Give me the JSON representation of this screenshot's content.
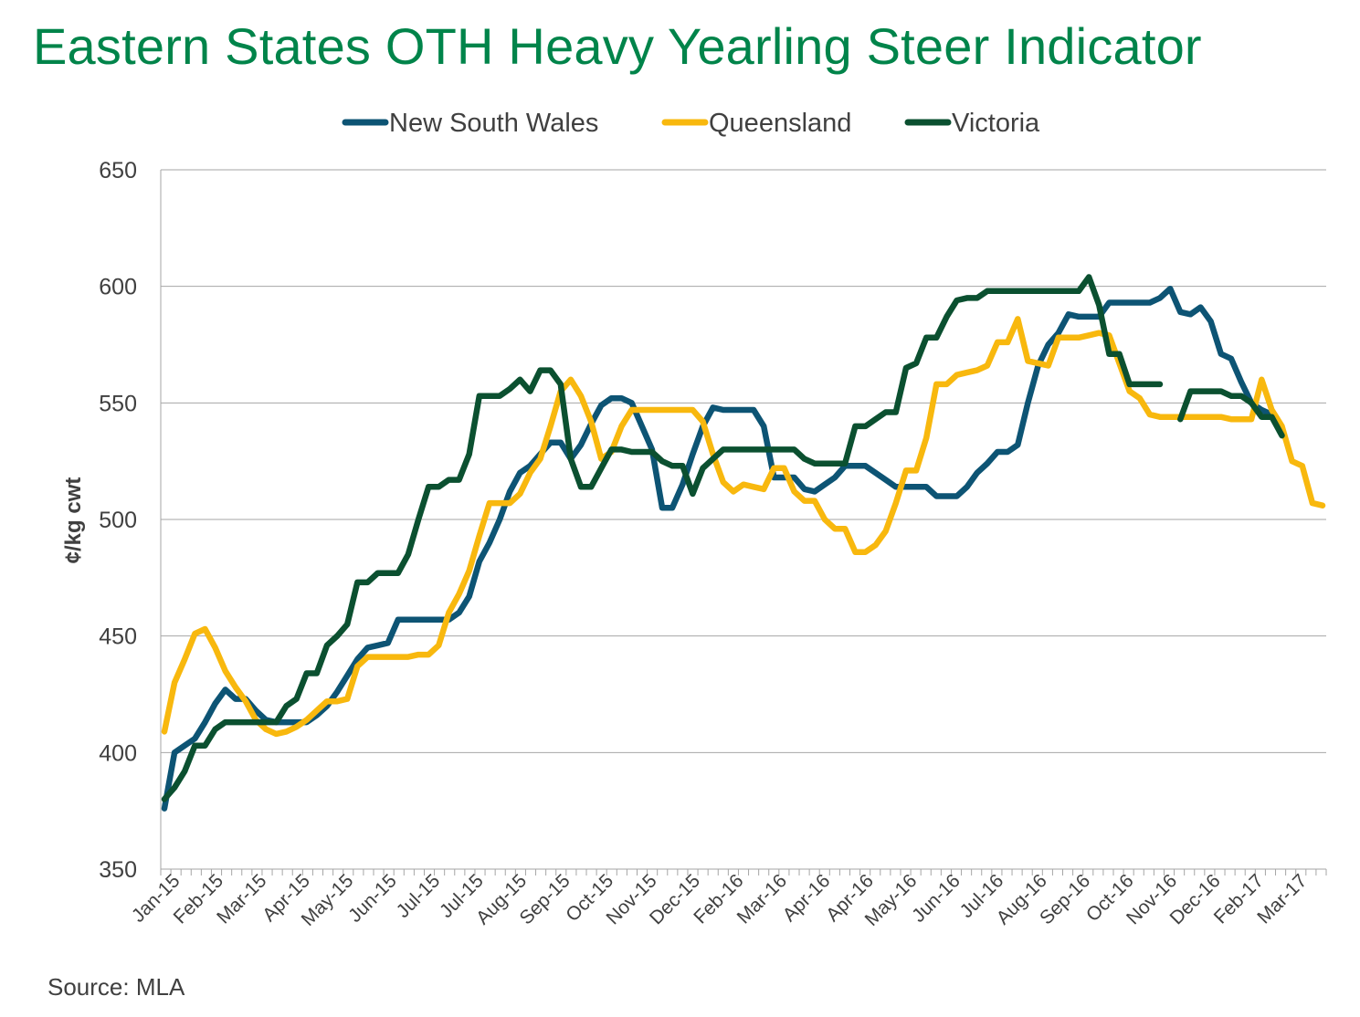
{
  "title": "Eastern States OTH Heavy Yearling Steer Indicator",
  "source": "Source: MLA",
  "chart_data": {
    "type": "line",
    "ylabel": "¢/kg cwt",
    "xlabel": "",
    "ylim": [
      350,
      650
    ],
    "yticks": [
      350,
      400,
      450,
      500,
      550,
      600,
      650
    ],
    "grid": true,
    "legend_position": "top",
    "x_ticks": [
      "Jan-15",
      "Feb-15",
      "Mar-15",
      "Apr-15",
      "May-15",
      "Jun-15",
      "Jul-15",
      "Jul-15",
      "Aug-15",
      "Sep-15",
      "Oct-15",
      "Nov-15",
      "Dec-15",
      "Feb-16",
      "Mar-16",
      "Apr-16",
      "Apr-16",
      "May-16",
      "Jun-16",
      "Jul-16",
      "Aug-16",
      "Sep-16",
      "Oct-16",
      "Nov-16",
      "Dec-16",
      "Feb-17",
      "Mar-17"
    ],
    "points_per_series": 115,
    "series": [
      {
        "name": "New South Wales",
        "color": "#0d5474",
        "values": [
          376,
          400,
          403,
          406,
          413,
          421,
          427,
          423,
          423,
          418,
          414,
          413,
          413,
          413,
          413,
          416,
          420,
          426,
          433,
          440,
          445,
          446,
          447,
          457,
          457,
          457,
          457,
          457,
          457,
          460,
          467,
          482,
          490,
          500,
          512,
          520,
          523,
          528,
          533,
          533,
          526,
          532,
          541,
          549,
          552,
          552,
          550,
          540,
          530,
          505,
          505,
          515,
          528,
          540,
          548,
          547,
          547,
          547,
          547,
          540,
          518,
          518,
          518,
          513,
          512,
          515,
          518,
          523,
          523,
          523,
          520,
          517,
          514,
          514,
          514,
          514,
          510,
          510,
          510,
          514,
          520,
          524,
          529,
          529,
          532,
          550,
          566,
          575,
          580,
          588,
          587,
          587,
          587,
          593,
          593,
          593,
          593,
          593,
          595,
          599,
          589,
          588,
          591,
          585,
          571,
          569,
          559,
          550,
          547,
          545,
          null,
          null,
          null,
          null,
          null
        ]
      },
      {
        "name": "Queensland",
        "color": "#f8b80e",
        "values": [
          409,
          430,
          440,
          451,
          453,
          445,
          435,
          428,
          422,
          414,
          410,
          408,
          409,
          411,
          414,
          418,
          422,
          422,
          423,
          437,
          441,
          441,
          441,
          441,
          441,
          442,
          442,
          446,
          460,
          468,
          478,
          493,
          507,
          507,
          507,
          511,
          520,
          526,
          540,
          555,
          560,
          553,
          542,
          526,
          529,
          540,
          547,
          547,
          547,
          547,
          547,
          547,
          547,
          542,
          528,
          516,
          512,
          515,
          514,
          513,
          522,
          522,
          512,
          508,
          508,
          500,
          496,
          496,
          486,
          486,
          489,
          495,
          507,
          521,
          521,
          535,
          558,
          558,
          562,
          563,
          564,
          566,
          576,
          576,
          586,
          568,
          567,
          566,
          578,
          578,
          578,
          579,
          580,
          579,
          567,
          555,
          552,
          545,
          544,
          544,
          544,
          544,
          544,
          544,
          544,
          543,
          543,
          543,
          560,
          547,
          540,
          525,
          523,
          507,
          506
        ]
      },
      {
        "name": "Victoria",
        "color": "#0b5030",
        "values": [
          380,
          385,
          392,
          403,
          403,
          410,
          413,
          413,
          413,
          413,
          413,
          413,
          420,
          423,
          434,
          434,
          446,
          450,
          455,
          473,
          473,
          477,
          477,
          477,
          485,
          500,
          514,
          514,
          517,
          517,
          528,
          553,
          553,
          553,
          556,
          560,
          555,
          564,
          564,
          558,
          526,
          514,
          514,
          522,
          530,
          530,
          529,
          529,
          529,
          525,
          523,
          523,
          511,
          522,
          526,
          530,
          530,
          530,
          530,
          530,
          530,
          530,
          530,
          526,
          524,
          524,
          524,
          524,
          540,
          540,
          543,
          546,
          546,
          565,
          567,
          578,
          578,
          587,
          594,
          595,
          595,
          598,
          598,
          598,
          598,
          598,
          598,
          598,
          598,
          598,
          598,
          604,
          592,
          571,
          571,
          558,
          558,
          558,
          558,
          null,
          543,
          555,
          555,
          555,
          555,
          553,
          553,
          550,
          544,
          544,
          536
        ]
      }
    ]
  }
}
